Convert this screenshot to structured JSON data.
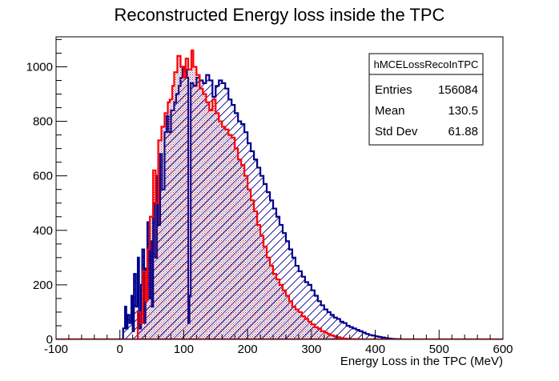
{
  "chart_data": {
    "type": "histogram",
    "title": "Reconstructed Energy loss inside the TPC",
    "xlabel": "Energy Loss in the TPC (MeV)",
    "ylabel": "",
    "xlim": [
      -100,
      600
    ],
    "ylim": [
      0,
      1110
    ],
    "x_ticks": [
      -100,
      0,
      100,
      200,
      300,
      400,
      500,
      600
    ],
    "y_ticks": [
      0,
      200,
      400,
      600,
      800,
      1000
    ],
    "grid": false,
    "stats_box": {
      "name": "hMCELossRecoInTPC",
      "rows": [
        {
          "label": "Entries",
          "value": "156084"
        },
        {
          "label": "Mean",
          "value": "130.5"
        },
        {
          "label": "Std Dev",
          "value": "61.88"
        }
      ]
    },
    "series": [
      {
        "color": "#00008b",
        "fill": "diagonal-hatch",
        "points": [
          [
            -100,
            0
          ],
          [
            0,
            0
          ],
          [
            5,
            40
          ],
          [
            8,
            120
          ],
          [
            10,
            40
          ],
          [
            12,
            90
          ],
          [
            15,
            60
          ],
          [
            18,
            160
          ],
          [
            20,
            30
          ],
          [
            22,
            240
          ],
          [
            25,
            120
          ],
          [
            28,
            300
          ],
          [
            30,
            40
          ],
          [
            33,
            200
          ],
          [
            35,
            330
          ],
          [
            38,
            60
          ],
          [
            40,
            260
          ],
          [
            43,
            430
          ],
          [
            46,
            150
          ],
          [
            48,
            360
          ],
          [
            50,
            120
          ],
          [
            52,
            500
          ],
          [
            55,
            300
          ],
          [
            58,
            600
          ],
          [
            60,
            420
          ],
          [
            63,
            680
          ],
          [
            66,
            550
          ],
          [
            70,
            760
          ],
          [
            73,
            820
          ],
          [
            76,
            760
          ],
          [
            80,
            840
          ],
          [
            85,
            870
          ],
          [
            88,
            900
          ],
          [
            92,
            930
          ],
          [
            95,
            960
          ],
          [
            98,
            1000
          ],
          [
            102,
            990
          ],
          [
            105,
            960
          ],
          [
            107,
            60
          ],
          [
            109,
            160
          ],
          [
            111,
            940
          ],
          [
            115,
            930
          ],
          [
            120,
            960
          ],
          [
            125,
            950
          ],
          [
            130,
            940
          ],
          [
            135,
            970
          ],
          [
            140,
            950
          ],
          [
            145,
            890
          ],
          [
            150,
            930
          ],
          [
            155,
            950
          ],
          [
            160,
            940
          ],
          [
            165,
            920
          ],
          [
            170,
            880
          ],
          [
            175,
            860
          ],
          [
            180,
            830
          ],
          [
            185,
            800
          ],
          [
            190,
            790
          ],
          [
            195,
            760
          ],
          [
            200,
            720
          ],
          [
            205,
            690
          ],
          [
            210,
            660
          ],
          [
            215,
            630
          ],
          [
            220,
            600
          ],
          [
            225,
            570
          ],
          [
            230,
            540
          ],
          [
            235,
            510
          ],
          [
            240,
            480
          ],
          [
            245,
            450
          ],
          [
            250,
            420
          ],
          [
            255,
            390
          ],
          [
            260,
            360
          ],
          [
            265,
            330
          ],
          [
            270,
            300
          ],
          [
            275,
            270
          ],
          [
            280,
            250
          ],
          [
            285,
            230
          ],
          [
            290,
            210
          ],
          [
            295,
            200
          ],
          [
            300,
            180
          ],
          [
            305,
            160
          ],
          [
            310,
            140
          ],
          [
            315,
            125
          ],
          [
            320,
            110
          ],
          [
            325,
            100
          ],
          [
            330,
            90
          ],
          [
            335,
            80
          ],
          [
            340,
            75
          ],
          [
            345,
            65
          ],
          [
            350,
            60
          ],
          [
            355,
            50
          ],
          [
            360,
            45
          ],
          [
            365,
            40
          ],
          [
            370,
            35
          ],
          [
            375,
            30
          ],
          [
            380,
            25
          ],
          [
            385,
            20
          ],
          [
            390,
            16
          ],
          [
            395,
            14
          ],
          [
            400,
            11
          ],
          [
            405,
            9
          ],
          [
            410,
            7
          ],
          [
            415,
            5
          ],
          [
            420,
            3
          ],
          [
            425,
            2
          ],
          [
            430,
            1
          ],
          [
            440,
            0
          ],
          [
            600,
            0
          ]
        ]
      },
      {
        "color": "#ff0000",
        "fill": "dotted",
        "points": [
          [
            -100,
            0
          ],
          [
            20,
            0
          ],
          [
            28,
            100
          ],
          [
            32,
            60
          ],
          [
            36,
            250
          ],
          [
            40,
            140
          ],
          [
            43,
            330
          ],
          [
            47,
            450
          ],
          [
            52,
            620
          ],
          [
            56,
            500
          ],
          [
            60,
            730
          ],
          [
            65,
            780
          ],
          [
            70,
            830
          ],
          [
            75,
            870
          ],
          [
            78,
            880
          ],
          [
            82,
            930
          ],
          [
            85,
            980
          ],
          [
            90,
            1040
          ],
          [
            95,
            1000
          ],
          [
            100,
            960
          ],
          [
            103,
            1030
          ],
          [
            107,
            990
          ],
          [
            112,
            1060
          ],
          [
            115,
            1000
          ],
          [
            120,
            970
          ],
          [
            125,
            920
          ],
          [
            130,
            900
          ],
          [
            135,
            870
          ],
          [
            140,
            840
          ],
          [
            145,
            880
          ],
          [
            150,
            830
          ],
          [
            155,
            800
          ],
          [
            160,
            780
          ],
          [
            165,
            770
          ],
          [
            170,
            750
          ],
          [
            175,
            740
          ],
          [
            180,
            700
          ],
          [
            185,
            660
          ],
          [
            190,
            640
          ],
          [
            195,
            600
          ],
          [
            200,
            550
          ],
          [
            205,
            510
          ],
          [
            210,
            470
          ],
          [
            215,
            420
          ],
          [
            220,
            380
          ],
          [
            225,
            340
          ],
          [
            230,
            300
          ],
          [
            235,
            270
          ],
          [
            240,
            240
          ],
          [
            245,
            220
          ],
          [
            250,
            200
          ],
          [
            255,
            180
          ],
          [
            260,
            160
          ],
          [
            265,
            140
          ],
          [
            270,
            120
          ],
          [
            275,
            110
          ],
          [
            280,
            100
          ],
          [
            285,
            85
          ],
          [
            290,
            75
          ],
          [
            295,
            65
          ],
          [
            300,
            55
          ],
          [
            305,
            45
          ],
          [
            310,
            40
          ],
          [
            315,
            30
          ],
          [
            320,
            25
          ],
          [
            325,
            20
          ],
          [
            330,
            15
          ],
          [
            335,
            12
          ],
          [
            340,
            8
          ],
          [
            345,
            5
          ],
          [
            350,
            3
          ],
          [
            355,
            2
          ],
          [
            360,
            1
          ],
          [
            370,
            0
          ],
          [
            600,
            0
          ]
        ]
      }
    ]
  }
}
